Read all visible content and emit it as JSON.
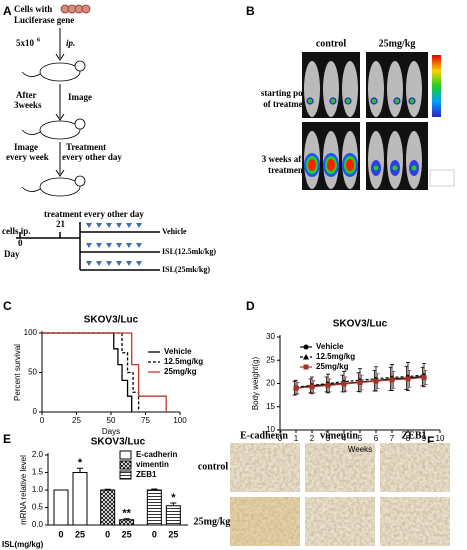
{
  "panel_a": {
    "label": "A",
    "cells": [
      "Cells with",
      "Luciferase gene"
    ],
    "dose": "5x10",
    "dose_exp": "6",
    "route": "ip.",
    "wait": [
      "After",
      "3weeks"
    ],
    "image": "Image",
    "image_weekly": [
      "Image",
      "every week"
    ],
    "treatment": [
      "Treatment",
      "every other day"
    ],
    "timeline": {
      "start": "cells ip.",
      "day0": "0",
      "treatment": "treatment",
      "day21": "21",
      "schedule": "every other day",
      "axis": "Day",
      "groups": [
        "Vehicle",
        "ISL(12.5mk/kg)",
        "ISL(25mk/kg)"
      ]
    }
  },
  "panel_b": {
    "label": "B",
    "columns": [
      "control",
      "25mg/kg"
    ],
    "rows": [
      [
        "starting point",
        "of treatment"
      ],
      [
        "3 weeks after",
        "treatment"
      ]
    ]
  },
  "panel_f": {
    "label": "F",
    "columns": [
      "E-cadherin",
      "vimentin",
      "ZEB1"
    ],
    "rows": [
      "control",
      "25mg/kg"
    ]
  },
  "chart_data": [
    {
      "type": "step",
      "panel": "C",
      "title": "SKOV3/Luc",
      "x_label": "Days",
      "y_label": "Percent survival",
      "xlim": [
        0,
        100
      ],
      "xticks": [
        0,
        25,
        50,
        75,
        100
      ],
      "ylim": [
        0,
        100
      ],
      "yticks": [
        0,
        50,
        100
      ],
      "series": [
        {
          "name": "Vehicle",
          "color": "#000000",
          "dash": false,
          "x": [
            0,
            52,
            55,
            58,
            62,
            65
          ],
          "values": [
            100,
            80,
            60,
            40,
            20,
            0
          ]
        },
        {
          "name": "12.5mg/kg",
          "color": "#000000",
          "dash": true,
          "x": [
            0,
            58,
            62,
            66,
            70
          ],
          "values": [
            100,
            75,
            50,
            25,
            0
          ]
        },
        {
          "name": "25mg/kg",
          "color": "#c0392b",
          "dash": false,
          "x": [
            0,
            65,
            70,
            90
          ],
          "values": [
            100,
            60,
            20,
            0
          ]
        }
      ]
    },
    {
      "type": "line",
      "panel": "D",
      "title": "SKOV3/Luc",
      "x_label": "Weeks",
      "y_label": "Body weight(g)",
      "xlim": [
        0,
        10
      ],
      "xticks": [
        0,
        1,
        2,
        3,
        4,
        5,
        6,
        7,
        8,
        9,
        10
      ],
      "ylim": [
        10,
        30
      ],
      "yticks": [
        10,
        15,
        20,
        25,
        30
      ],
      "x": [
        1,
        2,
        3,
        4,
        5,
        6,
        7,
        8,
        9
      ],
      "series": [
        {
          "name": "Vehicle",
          "color": "#000000",
          "dash": false,
          "marker": "circle",
          "values": [
            19,
            19.5,
            19.8,
            20,
            20.3,
            20.6,
            21,
            21.2,
            21.5
          ],
          "errors": [
            1.5,
            1.5,
            1.6,
            1.8,
            2,
            2.2,
            2.5,
            2.5,
            2
          ]
        },
        {
          "name": "12.5mg/kg",
          "color": "#000000",
          "dash": true,
          "marker": "triangle",
          "values": [
            19.2,
            19.6,
            20,
            20.4,
            20.7,
            21,
            21.3,
            21.5,
            21.8
          ],
          "errors": [
            1.5,
            1.8,
            2,
            2.2,
            2.5,
            2.6,
            2.8,
            3,
            2.5
          ]
        },
        {
          "name": "25mg/kg",
          "color": "#a93226",
          "dash": false,
          "marker": "square",
          "values": [
            19,
            19.3,
            19.6,
            19.9,
            20.2,
            20.5,
            20.8,
            21,
            21.3
          ],
          "errors": [
            1.2,
            1.3,
            1.4,
            1.5,
            1.6,
            1.6,
            1.8,
            1.8,
            1.5
          ]
        }
      ]
    },
    {
      "type": "bar",
      "panel": "E",
      "title": "SKOV3/Luc",
      "x_label": "ISL(mg/kg)",
      "y_label": "mRNA relative level",
      "ylim": [
        0,
        2
      ],
      "yticks": [
        {
          "value": 0,
          "label": "0.0"
        },
        0.5,
        {
          "value": 1,
          "label": "1.0"
        },
        1.5,
        {
          "value": 2,
          "label": "2.0"
        }
      ],
      "categories": [
        "0",
        "25"
      ],
      "series": [
        {
          "name": "E-cadherin",
          "color": "#000000",
          "fill": "white",
          "values": [
            1.0,
            1.5
          ],
          "errors": [
            0,
            0.12
          ]
        },
        {
          "name": "vimentin",
          "color": "#000000",
          "fill": "crosshatch",
          "values": [
            1.0,
            0.15
          ],
          "errors": [
            0.02,
            0.03
          ]
        },
        {
          "name": "ZEB1",
          "color": "#000000",
          "fill": "hlines",
          "values": [
            1.0,
            0.55
          ],
          "errors": [
            0.03,
            0.08
          ]
        }
      ],
      "annotations": [
        "*",
        "**",
        "*"
      ]
    }
  ]
}
